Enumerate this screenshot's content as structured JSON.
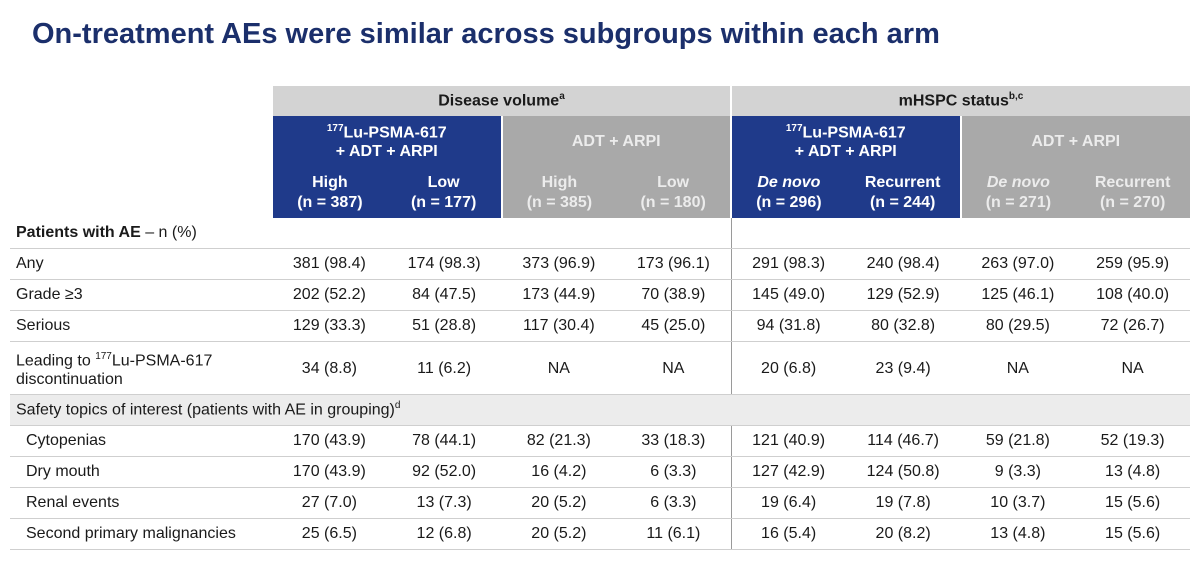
{
  "title": "On-treatment AEs were similar across subgroups within each arm",
  "groups": [
    {
      "label": "Disease volume",
      "sup": "a"
    },
    {
      "label": "mHSPC status",
      "sup": "b,c"
    }
  ],
  "arms": [
    {
      "sup": "177",
      "label": "Lu-PSMA-617",
      "line2": "+ ADT + ARPI"
    },
    {
      "label": "ADT + ARPI"
    },
    {
      "sup": "177",
      "label": "Lu-PSMA-617",
      "line2": "+ ADT + ARPI"
    },
    {
      "label": "ADT + ARPI"
    }
  ],
  "subgroups": [
    {
      "label": "High",
      "n": "(n = 387)"
    },
    {
      "label": "Low",
      "n": "(n = 177)"
    },
    {
      "label": "High",
      "n": "(n = 385)"
    },
    {
      "label": "Low",
      "n": "(n = 180)"
    },
    {
      "label": "De novo",
      "n": "(n = 296)"
    },
    {
      "label": "Recurrent",
      "n": "(n = 244)"
    },
    {
      "label": "De novo",
      "n": "(n = 271)"
    },
    {
      "label": "Recurrent",
      "n": "(n = 270)"
    }
  ],
  "section1": {
    "label": "Patients with AE",
    "suffix": " – n (%)"
  },
  "rows": [
    {
      "label": "Any",
      "values": [
        "381 (98.4)",
        "174 (98.3)",
        "373 (96.9)",
        "173 (96.1)",
        "291 (98.3)",
        "240 (98.4)",
        "263 (97.0)",
        "259 (95.9)"
      ]
    },
    {
      "label": "Grade ≥3",
      "values": [
        "202 (52.2)",
        "84 (47.5)",
        "173 (44.9)",
        "70 (38.9)",
        "145 (49.0)",
        "129 (52.9)",
        "125 (46.1)",
        "108 (40.0)"
      ]
    },
    {
      "label": "Serious",
      "values": [
        "129 (33.3)",
        "51 (28.8)",
        "117 (30.4)",
        "45 (25.0)",
        "94 (31.8)",
        "80 (32.8)",
        "80 (29.5)",
        "72 (26.7)"
      ]
    },
    {
      "label": "Leading to ",
      "sup": "177",
      "label2": "Lu-PSMA-617 discontinuation",
      "values": [
        "34 (8.8)",
        "11 (6.2)",
        "NA",
        "NA",
        "20 (6.8)",
        "23 (9.4)",
        "NA",
        "NA"
      ]
    }
  ],
  "section2": {
    "label": "Safety topics of interest (patients with AE in grouping)",
    "sup": "d"
  },
  "rows2": [
    {
      "label": "Cytopenias",
      "values": [
        "170 (43.9)",
        "78 (44.1)",
        "82 (21.3)",
        "33 (18.3)",
        "121 (40.9)",
        "114 (46.7)",
        "59 (21.8)",
        "52 (19.3)"
      ]
    },
    {
      "label": "Dry mouth",
      "values": [
        "170 (43.9)",
        "92 (52.0)",
        "16 (4.2)",
        "6 (3.3)",
        "127 (42.9)",
        "124 (50.8)",
        "9 (3.3)",
        "13 (4.8)"
      ]
    },
    {
      "label": "Renal events",
      "values": [
        "27 (7.0)",
        "13 (7.3)",
        "20 (5.2)",
        "6 (3.3)",
        "19 (6.4)",
        "19 (7.8)",
        "10 (3.7)",
        "15 (5.6)"
      ]
    },
    {
      "label": "Second primary malignancies",
      "values": [
        "25 (6.5)",
        "12 (6.8)",
        "20 (5.2)",
        "11 (6.1)",
        "16 (5.4)",
        "20 (8.2)",
        "13 (4.8)",
        "15 (5.6)"
      ]
    }
  ]
}
